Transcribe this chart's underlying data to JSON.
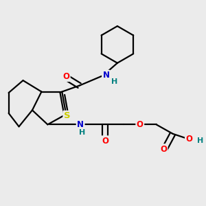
{
  "bg_color": "#ebebeb",
  "atom_colors": {
    "C": "#000000",
    "N": "#0000cd",
    "O": "#ff0000",
    "S": "#cccc00",
    "H": "#008080"
  },
  "bond_color": "#000000",
  "bond_width": 1.6,
  "figsize": [
    3.0,
    3.0
  ],
  "dpi": 100,
  "xlim": [
    0,
    10
  ],
  "ylim": [
    0,
    10
  ]
}
